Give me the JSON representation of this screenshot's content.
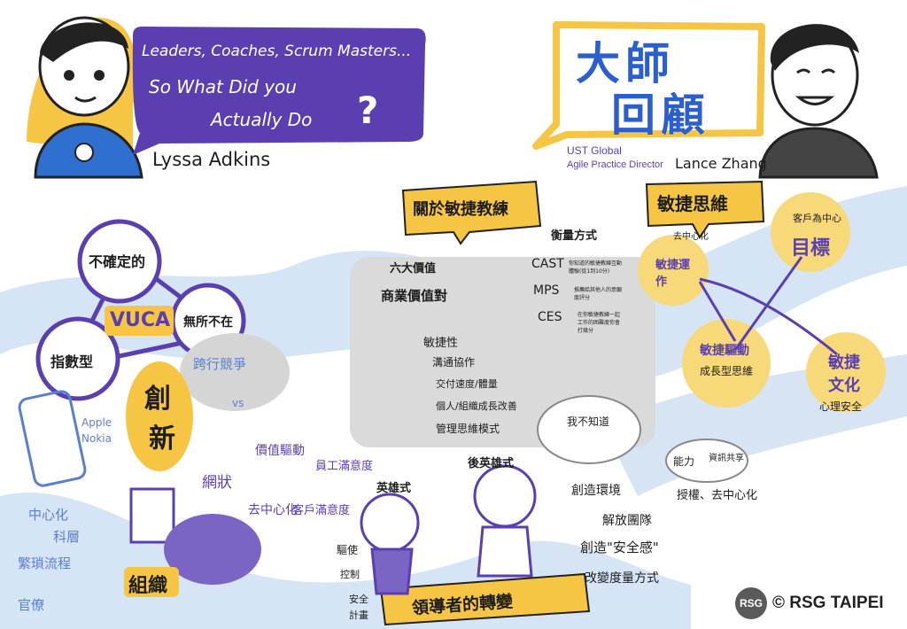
{
  "speaker_left": {
    "bubble_lines": [
      "Leaders, Coaches, Scrum Masters...",
      "So What Did you",
      "Actually Do"
    ],
    "question_mark": "?",
    "name": "Lyssa Adkins"
  },
  "speaker_right": {
    "title_line1": "大師",
    "title_line2": "回顧",
    "company": "UST Global",
    "role": "Agile Practice Director",
    "name": "Lance Zhang"
  },
  "vuca": {
    "center": "VUCA",
    "nodes": [
      "不確定的",
      "無所不在",
      "指數型"
    ],
    "disrupt": "跨行競爭",
    "vs": "vs",
    "innovation": [
      "創",
      "新"
    ],
    "brands": [
      "Apple",
      "Nokia"
    ]
  },
  "organization": {
    "label": "組織",
    "left_words": [
      "中心化",
      "科層",
      "繁瑣流程",
      "官僚"
    ],
    "network_words": [
      "網狀",
      "價值驅動",
      "員工滿意度",
      "去中心化",
      "客戶滿意度"
    ]
  },
  "agile_coach": {
    "banner": "關於敏捷教練",
    "six_values": "六大價值",
    "business_value": "商業價值對",
    "items": [
      "敏捷性",
      "溝通協作",
      "交付速度/體量",
      "個人/組織成長改善",
      "管理思維模式"
    ],
    "measure_title": "衡量方式",
    "measures": [
      {
        "name": "CAST",
        "desc": "你知道的敏捷教練互動體驗(從1到10分)"
      },
      {
        "name": "MPS",
        "desc": "推薦給其他人的意願度評分"
      },
      {
        "name": "CES",
        "desc": "在你敏捷教練一起工作的困難度你會打幾分"
      }
    ]
  },
  "agile_mindset": {
    "banner": "敏捷思維",
    "goal": "目標",
    "customer_center": "客戶為中心",
    "agile_ops": "敏捷運作",
    "decentralize": "去中心化",
    "agile_drive": "敏捷驅動",
    "growth_mindset": "成長型思維",
    "agile_culture": "敏捷文化",
    "psych_safety": "心理安全"
  },
  "leadership": {
    "banner": "領導者的轉變",
    "hero": "英雄式",
    "post_hero": "後英雄式",
    "hero_words": [
      "驅使",
      "控制",
      "安全",
      "計畫"
    ],
    "create_env": "創造環境",
    "dont_know": "我不知道",
    "solve_team": "解放團隊",
    "create_safety": "創造\"安全感\"",
    "change_measure": "改變度量方式",
    "empower": "授權、去中心化",
    "capability": "能力",
    "info_share": "資訊共享"
  },
  "footer": {
    "logo": "RSG",
    "copyright": "© RSG TAIPEI"
  },
  "colors": {
    "purple": "#5b3fb0",
    "yellow": "#f6c544",
    "light_blue": "#c9dcf2",
    "gray": "#dcdcdc"
  }
}
